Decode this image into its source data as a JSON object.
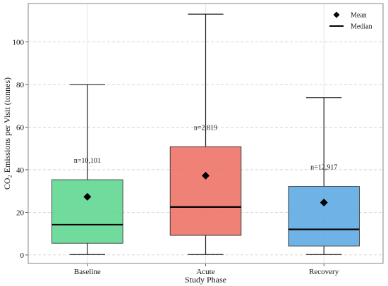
{
  "chart_data": {
    "type": "box",
    "xlabel": "Study Phase",
    "ylabel": "CO₂ Emissions per Visit (tonnes)",
    "ylim": [
      -4,
      118
    ],
    "yticks": [
      0,
      20,
      40,
      60,
      80,
      100
    ],
    "grid": {
      "x": true,
      "y": true,
      "y_style": "dashed"
    },
    "legend": {
      "placement": "top-right",
      "entries": [
        {
          "label": "Mean",
          "marker": "diamond"
        },
        {
          "label": "Median",
          "marker": "line"
        }
      ]
    },
    "categories": [
      "Baseline",
      "Acute",
      "Recovery"
    ],
    "series": [
      {
        "category": "Baseline",
        "color": "#5cd68e",
        "whisker_low": 0.2,
        "q1": 5.5,
        "median": 14.2,
        "q3": 35.3,
        "whisker_high": 80,
        "mean": 27.3,
        "n_label": "n=10,101"
      },
      {
        "category": "Acute",
        "color": "#ee6f64",
        "whisker_low": 0.2,
        "q1": 9.2,
        "median": 22.5,
        "q3": 50.8,
        "whisker_high": 113,
        "mean": 37.2,
        "n_label": "n=2,819"
      },
      {
        "category": "Recovery",
        "color": "#5ba8e2",
        "whisker_low": 0.2,
        "q1": 4.2,
        "median": 12.0,
        "q3": 32.2,
        "whisker_high": 73.8,
        "mean": 24.6,
        "n_label": "n=12,917"
      }
    ]
  }
}
